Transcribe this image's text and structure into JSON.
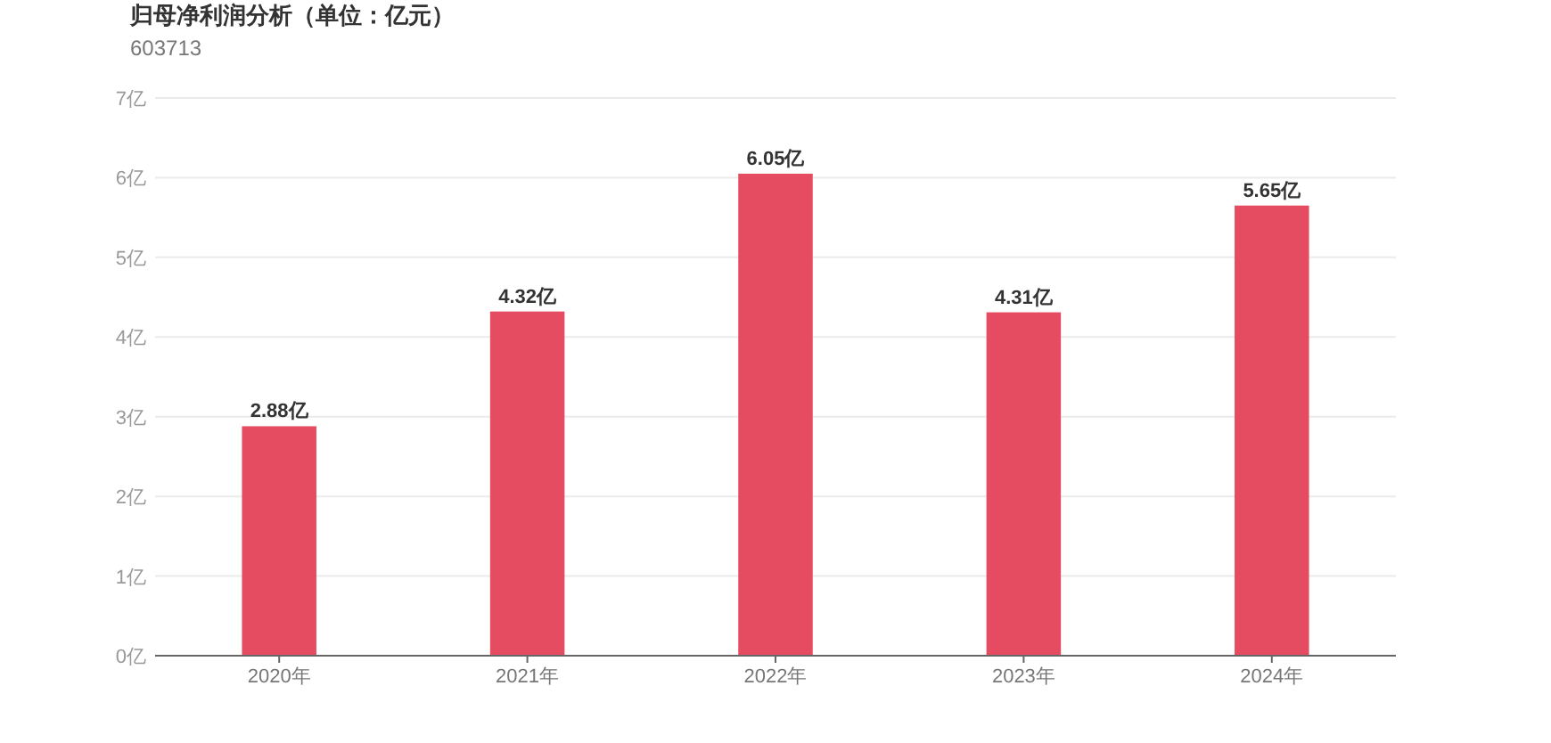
{
  "chart_data": {
    "type": "bar",
    "title": "归母净利润分析（单位：亿元）",
    "subtitle": "603713",
    "categories": [
      "2020年",
      "2021年",
      "2022年",
      "2023年",
      "2024年"
    ],
    "values": [
      2.88,
      4.32,
      6.05,
      4.31,
      5.65
    ],
    "value_labels": [
      "2.88亿",
      "4.32亿",
      "6.05亿",
      "4.31亿",
      "5.65亿"
    ],
    "color": "#e64c61",
    "ylim": [
      0,
      7
    ],
    "yticks": [
      {
        "value": 0,
        "label": "0亿"
      },
      {
        "value": 1,
        "label": "1亿"
      },
      {
        "value": 2,
        "label": "2亿"
      },
      {
        "value": 3,
        "label": "3亿"
      },
      {
        "value": 4,
        "label": "4亿"
      },
      {
        "value": 5,
        "label": "5亿"
      },
      {
        "value": 6,
        "label": "6亿"
      },
      {
        "value": 7,
        "label": "7亿"
      }
    ],
    "grid": "y"
  }
}
